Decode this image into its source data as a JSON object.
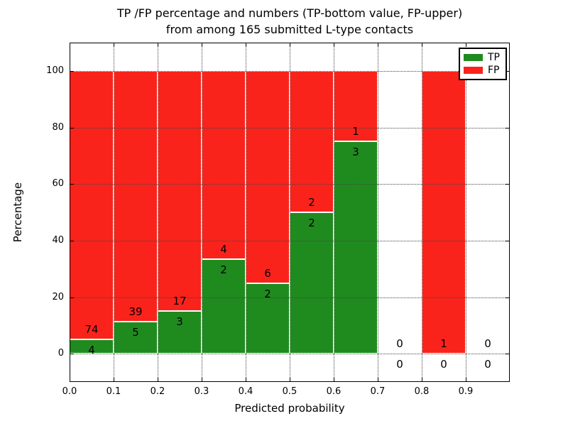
{
  "chart_data": {
    "type": "bar",
    "stacked": true,
    "normalized_to_percent": true,
    "title_line1": "TP /FP percentage and numbers (TP-bottom value, FP-upper)",
    "title_line2": "from among 165 submitted L-type contacts",
    "xlabel": "Predicted probability",
    "ylabel": "Percentage",
    "total_submitted": 165,
    "xlim": [
      0.0,
      1.0
    ],
    "ylim": [
      -10,
      110
    ],
    "grid": true,
    "legend_position": "upper right",
    "colors": {
      "tp": "#1f8b1f",
      "fp": "#fa231c",
      "bar_edge": "#ffffff",
      "grid": "#444444",
      "axis": "#000000"
    },
    "legend": {
      "entries": [
        {
          "label": "TP",
          "color": "#1f8b1f"
        },
        {
          "label": "FP",
          "color": "#fa231c"
        }
      ]
    },
    "xticks": [
      {
        "value": 0.0,
        "label": "0.0"
      },
      {
        "value": 0.1,
        "label": "0.1"
      },
      {
        "value": 0.2,
        "label": "0.2"
      },
      {
        "value": 0.3,
        "label": "0.3"
      },
      {
        "value": 0.4,
        "label": "0.4"
      },
      {
        "value": 0.5,
        "label": "0.5"
      },
      {
        "value": 0.6,
        "label": "0.6"
      },
      {
        "value": 0.7,
        "label": "0.7"
      },
      {
        "value": 0.8,
        "label": "0.8"
      },
      {
        "value": 0.9,
        "label": "0.9"
      }
    ],
    "yticks": [
      {
        "value": 0,
        "label": "0"
      },
      {
        "value": 20,
        "label": "20"
      },
      {
        "value": 40,
        "label": "40"
      },
      {
        "value": 60,
        "label": "60"
      },
      {
        "value": 80,
        "label": "80"
      },
      {
        "value": 100,
        "label": "100"
      }
    ],
    "bins": [
      {
        "x_range": [
          0.0,
          0.1
        ],
        "tp_count": 4,
        "fp_count": 74
      },
      {
        "x_range": [
          0.1,
          0.2
        ],
        "tp_count": 5,
        "fp_count": 39
      },
      {
        "x_range": [
          0.2,
          0.3
        ],
        "tp_count": 3,
        "fp_count": 17
      },
      {
        "x_range": [
          0.3,
          0.4
        ],
        "tp_count": 2,
        "fp_count": 4
      },
      {
        "x_range": [
          0.4,
          0.5
        ],
        "tp_count": 2,
        "fp_count": 6
      },
      {
        "x_range": [
          0.5,
          0.6
        ],
        "tp_count": 2,
        "fp_count": 2
      },
      {
        "x_range": [
          0.6,
          0.7
        ],
        "tp_count": 3,
        "fp_count": 1
      },
      {
        "x_range": [
          0.7,
          0.8
        ],
        "tp_count": 0,
        "fp_count": 0
      },
      {
        "x_range": [
          0.8,
          0.9
        ],
        "tp_count": 0,
        "fp_count": 1
      },
      {
        "x_range": [
          0.9,
          1.0
        ],
        "tp_count": 0,
        "fp_count": 0
      }
    ]
  }
}
